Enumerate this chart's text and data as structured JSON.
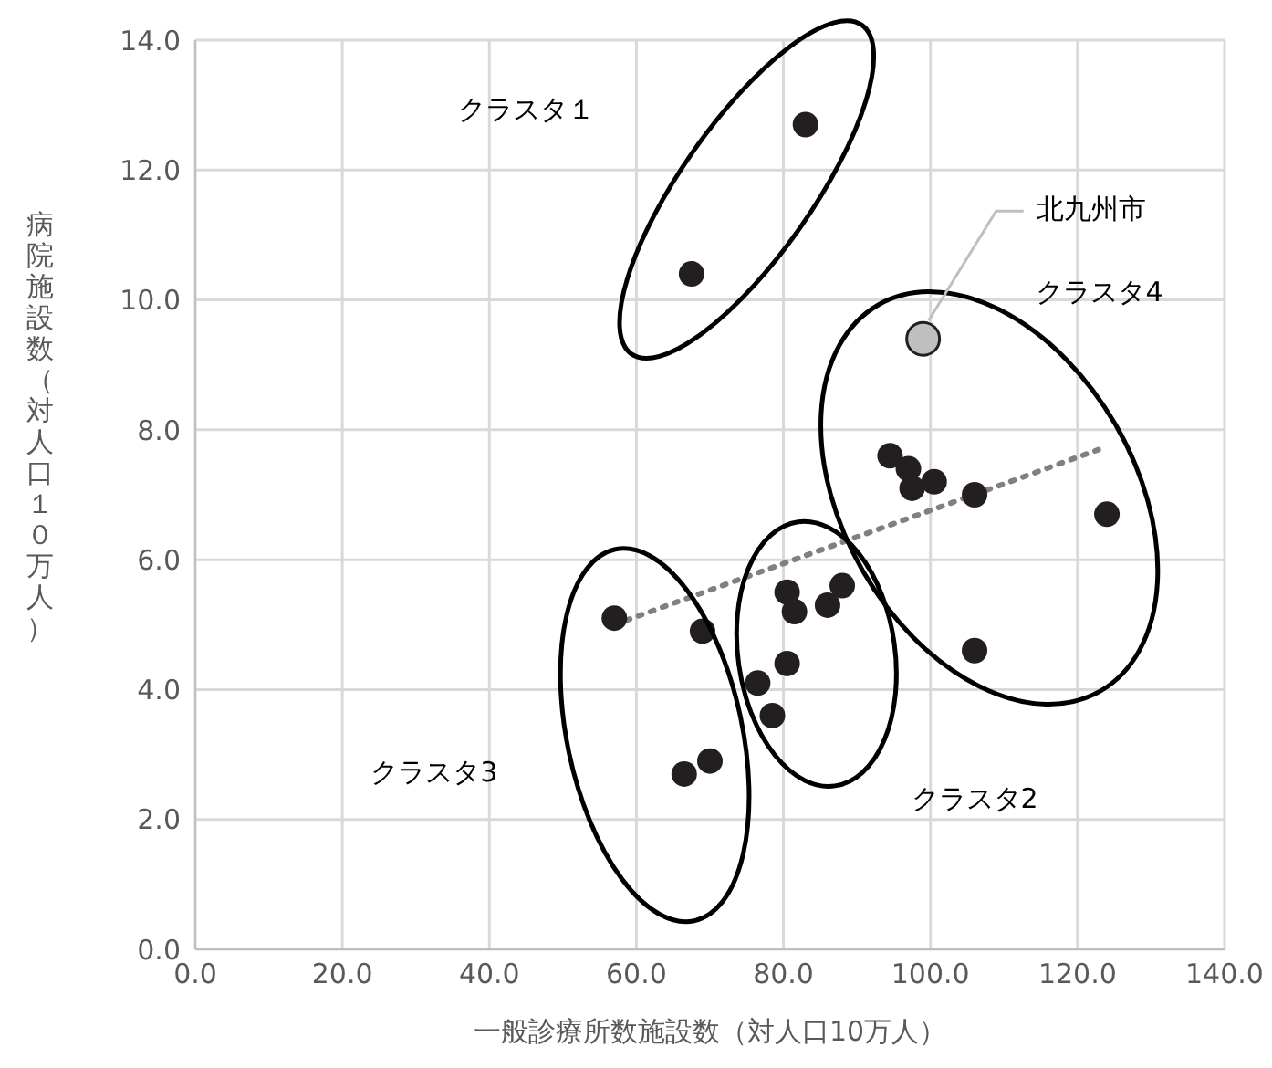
{
  "chart_data": {
    "type": "scatter",
    "xlabel": "一般診療所数施設数（対人口10万人）",
    "ylabel": "病院施設数（対人口１０万人）",
    "xlim": [
      0,
      140
    ],
    "ylim": [
      0,
      14
    ],
    "xticks": [
      {
        "value": 0,
        "label": "0.0"
      },
      {
        "value": 20,
        "label": "20.0"
      },
      {
        "value": 40,
        "label": "40.0"
      },
      {
        "value": 60,
        "label": "60.0"
      },
      {
        "value": 80,
        "label": "80.0"
      },
      {
        "value": 100,
        "label": "100.0"
      },
      {
        "value": 120,
        "label": "120.0"
      },
      {
        "value": 140,
        "label": "140.0"
      }
    ],
    "yticks": [
      {
        "value": 0,
        "label": "0.0"
      },
      {
        "value": 2,
        "label": "2.0"
      },
      {
        "value": 4,
        "label": "4.0"
      },
      {
        "value": 6,
        "label": "6.0"
      },
      {
        "value": 8,
        "label": "8.0"
      },
      {
        "value": 10,
        "label": "10.0"
      },
      {
        "value": 12,
        "label": "12.0"
      },
      {
        "value": 14,
        "label": "14.0"
      }
    ],
    "grid": true,
    "legend": false,
    "marker": "circle",
    "series": [
      {
        "color": "#231f20",
        "x": [
          83,
          67.5,
          94.5,
          97,
          97.5,
          100.5,
          106,
          124,
          106,
          57,
          69,
          80.5,
          81.5,
          86,
          88,
          80.5,
          76.5,
          78.5,
          66.5,
          70
        ],
        "values": [
          12.7,
          10.4,
          7.6,
          7.4,
          7.1,
          7.2,
          7.0,
          6.7,
          4.6,
          5.1,
          4.9,
          5.5,
          5.2,
          5.3,
          5.6,
          4.4,
          4.1,
          3.6,
          2.7,
          2.9
        ]
      },
      {
        "type": "scatter",
        "name": "北九州市",
        "color": "#bfbfbf",
        "x": [
          99
        ],
        "values": [
          9.4
        ]
      },
      {
        "type": "line",
        "color": "#808080",
        "line_style": "dotted",
        "marker": "none",
        "x": [
          57,
          123
        ],
        "values": [
          5.0,
          7.7
        ]
      }
    ],
    "annotations": [
      "クラスタ１",
      "クラスタ4",
      "クラスタ3",
      "クラスタ2"
    ]
  }
}
